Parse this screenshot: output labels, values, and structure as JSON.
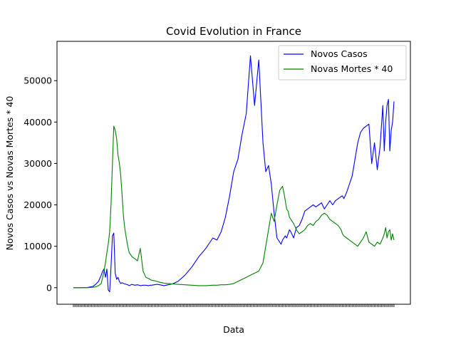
{
  "chart_data": {
    "type": "line",
    "title": "Covid Evolution in France",
    "xlabel": "Data",
    "ylabel": "Novos Casos vs Novas Mortes * 40",
    "ylim": [
      -4000,
      59500
    ],
    "yticks": [
      0,
      10000,
      20000,
      30000,
      40000,
      50000
    ],
    "grid": false,
    "legend_position": "top-right",
    "x": [
      0,
      10,
      20,
      28,
      32,
      36,
      40,
      42,
      44,
      46,
      48,
      50,
      52,
      54,
      56,
      58,
      60,
      62,
      64,
      66,
      68,
      70,
      72,
      74,
      76,
      78,
      80,
      84,
      88,
      92,
      96,
      100,
      104,
      108,
      110,
      112,
      116,
      120,
      124,
      130,
      136,
      142,
      150,
      160,
      170,
      180,
      190,
      200,
      206,
      212,
      218,
      224,
      230,
      236,
      242,
      248,
      254,
      260,
      266,
      272,
      276,
      280,
      284,
      288,
      292,
      296,
      298,
      300,
      302,
      304,
      306,
      308,
      310,
      312,
      316,
      320,
      324,
      328,
      332,
      336,
      340,
      344,
      348,
      352,
      356,
      360,
      364,
      368,
      372,
      376,
      380,
      384,
      386,
      388,
      392,
      396,
      400,
      404,
      408,
      412,
      416,
      420,
      424,
      428,
      432,
      436,
      440,
      444,
      446,
      448,
      450,
      452,
      454,
      456,
      458,
      460
    ],
    "series": [
      {
        "name": "Novos Casos",
        "color": "#0000ff",
        "values": [
          0,
          0,
          50,
          300,
          800,
          1500,
          3000,
          4000,
          4500,
          2500,
          4500,
          -500,
          -1000,
          5000,
          12500,
          13200,
          3500,
          2000,
          2500,
          1500,
          1000,
          1200,
          1000,
          900,
          800,
          700,
          500,
          800,
          600,
          700,
          500,
          600,
          600,
          500,
          600,
          600,
          700,
          800,
          700,
          500,
          700,
          900,
          1500,
          3000,
          5000,
          7500,
          9500,
          12000,
          11500,
          13500,
          17000,
          22000,
          28000,
          31000,
          37000,
          42000,
          56000,
          44000,
          55000,
          35000,
          28000,
          29500,
          25000,
          18000,
          12000,
          11000,
          10500,
          11500,
          12000,
          12500,
          12000,
          13000,
          14000,
          13500,
          12000,
          14500,
          15000,
          16500,
          18500,
          19000,
          19500,
          20000,
          19500,
          20000,
          20500,
          19000,
          20000,
          21000,
          20000,
          21000,
          21500,
          22000,
          22200,
          21500,
          23000,
          25000,
          27000,
          31000,
          35000,
          37500,
          38500,
          39000,
          39500,
          30000,
          35000,
          28500,
          34000,
          44000,
          33000,
          40000,
          44000,
          45500,
          33000,
          38000,
          40000,
          45000
        ]
      },
      {
        "name": "Novas Mortes * 40",
        "color": "#008000",
        "values": [
          0,
          0,
          0,
          100,
          200,
          500,
          1000,
          2500,
          4000,
          6000,
          8500,
          10500,
          13500,
          20000,
          30000,
          39000,
          38000,
          36000,
          32000,
          30000,
          27000,
          22000,
          17000,
          14000,
          12000,
          10000,
          8500,
          7500,
          7000,
          6500,
          9500,
          4000,
          2500,
          2200,
          2000,
          1800,
          1700,
          1500,
          1300,
          1100,
          1000,
          900,
          800,
          700,
          600,
          500,
          500,
          600,
          600,
          700,
          700,
          800,
          1000,
          1500,
          2000,
          2500,
          3000,
          3500,
          4000,
          6000,
          10000,
          14000,
          18000,
          16000,
          20000,
          23500,
          24000,
          24500,
          23000,
          21000,
          19000,
          18500,
          17000,
          16500,
          15500,
          14000,
          13000,
          13500,
          14000,
          15000,
          15500,
          15000,
          16000,
          16500,
          17500,
          18000,
          17500,
          16500,
          16000,
          15500,
          15000,
          14000,
          13000,
          12500,
          12000,
          11500,
          11000,
          10500,
          10000,
          11000,
          12000,
          13500,
          11000,
          10500,
          10000,
          11000,
          10500,
          12000,
          13000,
          14500,
          12000,
          13500,
          14000,
          11500,
          13000,
          11500
        ]
      }
    ]
  }
}
